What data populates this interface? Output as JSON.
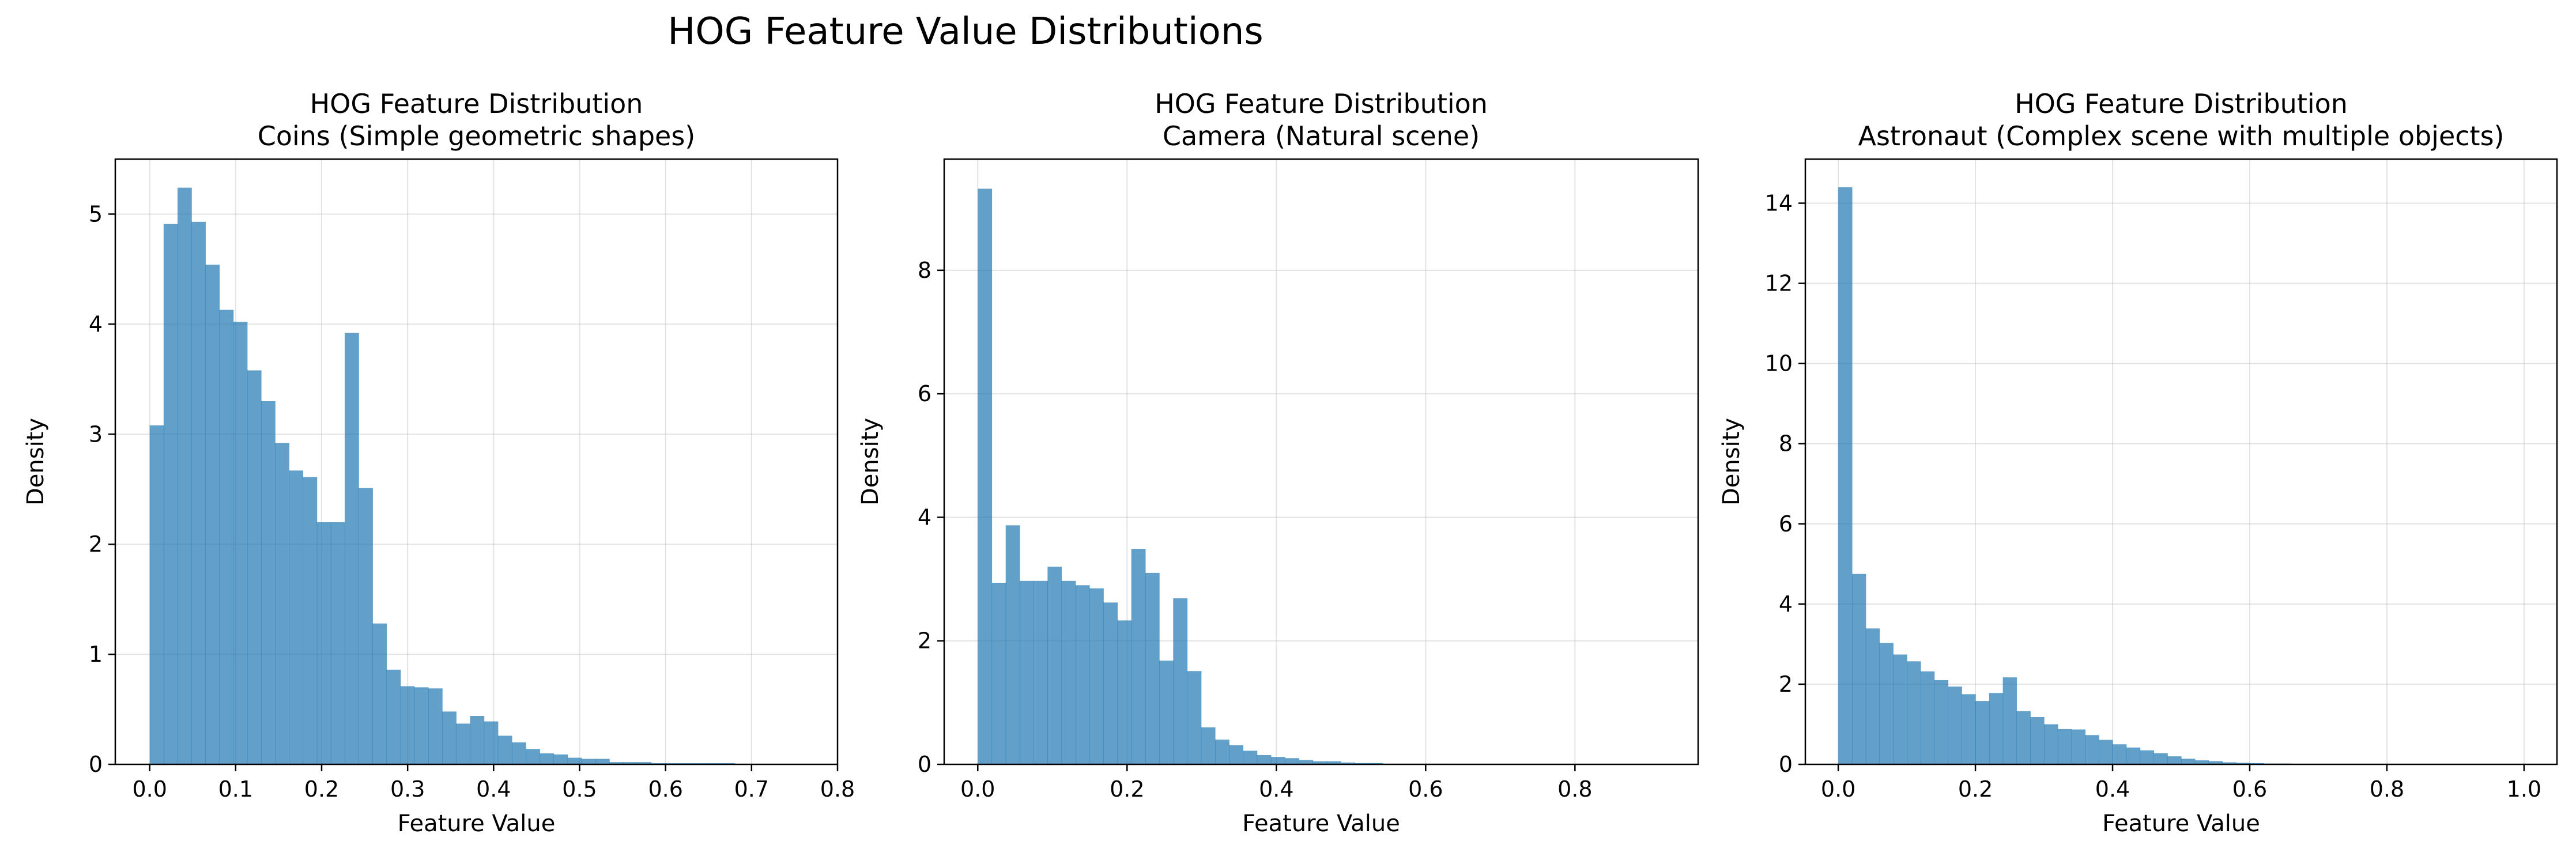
{
  "figure": {
    "title": "HOG Feature Value Distributions"
  },
  "colors": {
    "bar": "#1f77b4",
    "bar_opacity": 0.7,
    "grid": "#b0b0b0",
    "axis": "#000000"
  },
  "chart_data": [
    {
      "type": "bar",
      "title_line1": "HOG Feature Distribution",
      "title_line2": "Coins (Simple geometric shapes)",
      "xlabel": "Feature Value",
      "ylabel": "Density",
      "xlim": [
        -0.04,
        0.8
      ],
      "ylim": [
        0,
        5.5
      ],
      "xticks": [
        0.0,
        0.1,
        0.2,
        0.3,
        0.4,
        0.5,
        0.6,
        0.7,
        0.8
      ],
      "xtick_labels": [
        "0.0",
        "0.1",
        "0.2",
        "0.3",
        "0.4",
        "0.5",
        "0.6",
        "0.7",
        "0.8"
      ],
      "yticks": [
        0,
        1,
        2,
        3,
        4,
        5
      ],
      "ytick_labels": [
        "0",
        "1",
        "2",
        "3",
        "4",
        "5"
      ],
      "grid": true,
      "bin_start": 0.0,
      "bin_width": 0.0162,
      "values": [
        3.08,
        4.91,
        5.24,
        4.93,
        4.54,
        4.13,
        4.02,
        3.58,
        3.3,
        2.92,
        2.67,
        2.61,
        2.2,
        2.2,
        3.92,
        2.51,
        1.28,
        0.86,
        0.71,
        0.7,
        0.69,
        0.48,
        0.37,
        0.44,
        0.39,
        0.26,
        0.2,
        0.14,
        0.1,
        0.09,
        0.06,
        0.05,
        0.05,
        0.02,
        0.02,
        0.02,
        0.01,
        0.01,
        0.01,
        0.01,
        0.01,
        0.01,
        0.005,
        0.005,
        0.005,
        0.005,
        0.005,
        0.005
      ]
    },
    {
      "type": "bar",
      "title_line1": "HOG Feature Distribution",
      "title_line2": "Camera (Natural scene)",
      "xlabel": "Feature Value",
      "ylabel": "Density",
      "xlim": [
        -0.045,
        0.965
      ],
      "ylim": [
        0,
        9.8
      ],
      "xticks": [
        0.0,
        0.2,
        0.4,
        0.6,
        0.8
      ],
      "xtick_labels": [
        "0.0",
        "0.2",
        "0.4",
        "0.6",
        "0.8"
      ],
      "yticks": [
        0,
        2,
        4,
        6,
        8
      ],
      "ytick_labels": [
        "0",
        "2",
        "4",
        "6",
        "8"
      ],
      "grid": true,
      "bin_start": 0.0,
      "bin_width": 0.0187,
      "values": [
        9.32,
        2.94,
        3.87,
        2.97,
        2.97,
        3.2,
        2.97,
        2.9,
        2.85,
        2.62,
        2.33,
        3.49,
        3.1,
        1.68,
        2.69,
        1.51,
        0.6,
        0.4,
        0.31,
        0.22,
        0.15,
        0.12,
        0.1,
        0.07,
        0.05,
        0.05,
        0.03,
        0.02,
        0.02,
        0.01,
        0.01,
        0.01,
        0.01,
        0.01,
        0.005,
        0.005,
        0.005,
        0.005,
        0.005,
        0.005,
        0.005,
        0.005,
        0.005,
        0.005,
        0.005,
        0.005,
        0.005,
        0.005,
        0.005
      ]
    },
    {
      "type": "bar",
      "title_line1": "HOG Feature Distribution",
      "title_line2": "Astronaut (Complex scene with multiple objects)",
      "xlabel": "Feature Value",
      "ylabel": "Density",
      "xlim": [
        -0.048,
        1.048
      ],
      "ylim": [
        0,
        15.1
      ],
      "xticks": [
        0.0,
        0.2,
        0.4,
        0.6,
        0.8,
        1.0
      ],
      "xtick_labels": [
        "0.0",
        "0.2",
        "0.4",
        "0.6",
        "0.8",
        "1.0"
      ],
      "yticks": [
        0,
        2,
        4,
        6,
        8,
        10,
        12,
        14
      ],
      "ytick_labels": [
        "0",
        "2",
        "4",
        "6",
        "8",
        "10",
        "12",
        "14"
      ],
      "grid": true,
      "bin_start": 0.0,
      "bin_width": 0.02,
      "values": [
        14.4,
        4.75,
        3.39,
        3.03,
        2.74,
        2.57,
        2.32,
        2.1,
        1.94,
        1.75,
        1.58,
        1.78,
        2.17,
        1.33,
        1.18,
        1.0,
        0.88,
        0.87,
        0.73,
        0.61,
        0.5,
        0.42,
        0.35,
        0.28,
        0.2,
        0.14,
        0.1,
        0.08,
        0.05,
        0.04,
        0.03,
        0.02,
        0.02,
        0.01,
        0.01,
        0.01,
        0.01,
        0.005,
        0.005,
        0.005,
        0.005,
        0.005,
        0.005,
        0.005,
        0.005,
        0.005,
        0.005,
        0.005,
        0.005,
        0.005
      ]
    }
  ]
}
